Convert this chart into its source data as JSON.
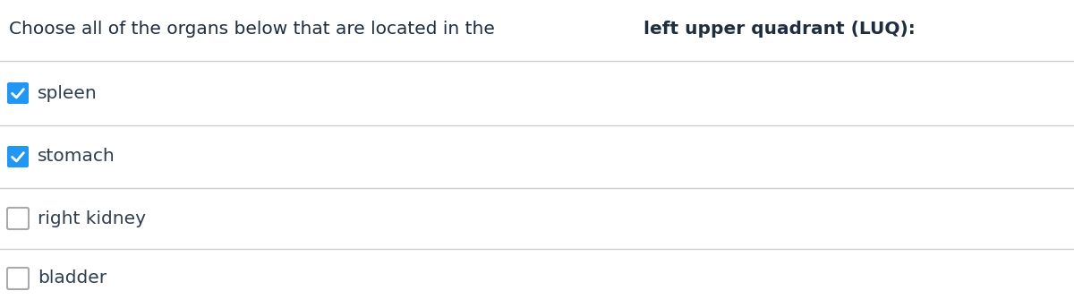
{
  "title_normal": "Choose all of the organs below that are located in the ",
  "title_bold": "left upper quadrant (LUQ):",
  "options": [
    "spleen",
    "stomach",
    "right kidney",
    "bladder"
  ],
  "checked": [
    true,
    true,
    false,
    false
  ],
  "background_color": "#ffffff",
  "text_color": "#1e2d40",
  "checkbox_checked_color": "#2196F3",
  "checkbox_unchecked_fill": "#ffffff",
  "checkbox_unchecked_border": "#aaaaaa",
  "divider_color": "#cccccc",
  "option_text_color": "#2e3d50",
  "title_fontsize": 14.5,
  "option_fontsize": 14.5,
  "figwidth": 12.0,
  "figheight": 3.44,
  "dpi": 100
}
